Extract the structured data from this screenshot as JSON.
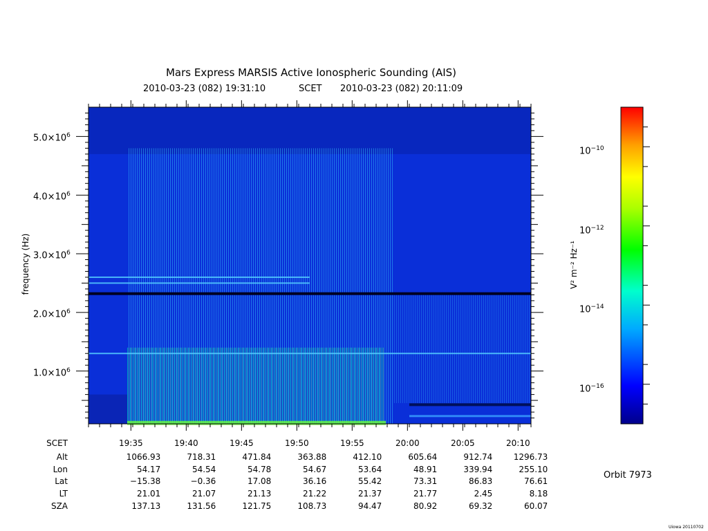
{
  "chart_data": {
    "type": "heatmap",
    "title": "Mars Express MARSIS Active Ionospheric Sounding (AIS)",
    "subtitle_start": "2010-03-23 (082) 19:31:10",
    "subtitle_scet": "SCET",
    "subtitle_end": "2010-03-23 (082) 20:11:09",
    "ylabel": "frequency (Hz)",
    "ylim": [
      100000,
      5500000
    ],
    "xlim_minutes": [
      0,
      40
    ],
    "y_ticks": [
      {
        "value": 1000000,
        "mantissa": "1.0×10",
        "exp": "6"
      },
      {
        "value": 2000000,
        "mantissa": "2.0×10",
        "exp": "6"
      },
      {
        "value": 3000000,
        "mantissa": "3.0×10",
        "exp": "6"
      },
      {
        "value": 4000000,
        "mantissa": "4.0×10",
        "exp": "6"
      },
      {
        "value": 5000000,
        "mantissa": "5.0×10",
        "exp": "6"
      }
    ],
    "colorbar": {
      "label": "V² m⁻² Hz⁻¹",
      "log_range": [
        -17,
        -9
      ],
      "ticks": [
        {
          "value": -10,
          "base": "10",
          "exp": "−10"
        },
        {
          "value": -12,
          "base": "10",
          "exp": "−12"
        },
        {
          "value": -14,
          "base": "10",
          "exp": "−14"
        },
        {
          "value": -16,
          "base": "10",
          "exp": "−16"
        }
      ],
      "colors": [
        "#00008b",
        "#0000ff",
        "#00aaff",
        "#00ffcc",
        "#00ff00",
        "#aaff00",
        "#ffff00",
        "#ffa000",
        "#ff0000"
      ]
    },
    "features": {
      "black_line_frequency": 2320000,
      "cyan_lines": [
        2500000,
        2600000,
        1300000
      ],
      "active_region_minutes": [
        3.5,
        27.5
      ]
    }
  },
  "ephemeris": {
    "labels": [
      "SCET",
      "Alt",
      "Lon",
      "Lat",
      "LT",
      "SZA"
    ],
    "columns": [
      {
        "SCET": "19:35",
        "Alt": "1066.93",
        "Lon": "54.17",
        "Lat": "−15.38",
        "LT": "21.01",
        "SZA": "137.13"
      },
      {
        "SCET": "19:40",
        "Alt": "718.31",
        "Lon": "54.54",
        "Lat": "−0.36",
        "LT": "21.07",
        "SZA": "131.56"
      },
      {
        "SCET": "19:45",
        "Alt": "471.84",
        "Lon": "54.78",
        "Lat": "17.08",
        "LT": "21.13",
        "SZA": "121.75"
      },
      {
        "SCET": "19:50",
        "Alt": "363.88",
        "Lon": "54.67",
        "Lat": "36.16",
        "LT": "21.22",
        "SZA": "108.73"
      },
      {
        "SCET": "19:55",
        "Alt": "412.10",
        "Lon": "53.64",
        "Lat": "55.42",
        "LT": "21.37",
        "SZA": "94.47"
      },
      {
        "SCET": "20:00",
        "Alt": "605.64",
        "Lon": "48.91",
        "Lat": "73.31",
        "LT": "21.77",
        "SZA": "80.92"
      },
      {
        "SCET": "20:05",
        "Alt": "912.74",
        "Lon": "339.94",
        "Lat": "86.83",
        "LT": "2.45",
        "SZA": "69.32"
      },
      {
        "SCET": "20:10",
        "Alt": "1296.73",
        "Lon": "255.10",
        "Lat": "76.61",
        "LT": "8.18",
        "SZA": "60.07"
      }
    ]
  },
  "orbit_label": "Orbit 7973",
  "footer_credit": "Uiowa 20110702"
}
